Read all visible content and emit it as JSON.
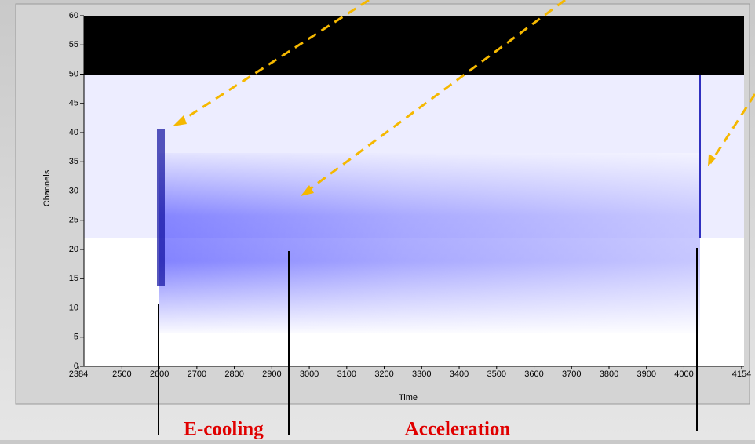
{
  "chart_data": {
    "type": "heatmap",
    "x_label": "Time",
    "y_label": "Channels",
    "xlim": [
      2384,
      4154
    ],
    "ylim": [
      0,
      60
    ],
    "xticks": [
      2384,
      2500,
      2600,
      2700,
      2800,
      2900,
      3000,
      3100,
      3200,
      3300,
      3400,
      3500,
      3600,
      3700,
      3800,
      3900,
      4000,
      4154
    ],
    "yticks": [
      0,
      5,
      10,
      15,
      20,
      25,
      30,
      35,
      40,
      45,
      50,
      55,
      60
    ],
    "annotations": [
      "E-cooling",
      "Acceleration"
    ]
  }
}
